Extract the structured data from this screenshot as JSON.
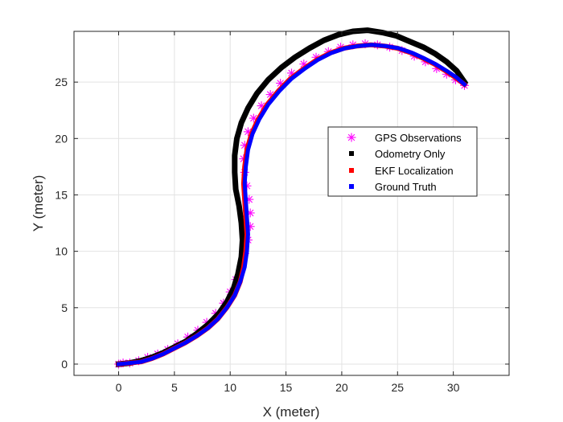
{
  "chart_data": {
    "type": "line",
    "title": "",
    "xlabel": "X (meter)",
    "ylabel": "Y (meter)",
    "xlim": [
      -4,
      35
    ],
    "ylim": [
      -1,
      29.5
    ],
    "xticks": [
      0,
      5,
      10,
      15,
      20,
      25,
      30
    ],
    "yticks": [
      0,
      5,
      10,
      15,
      20,
      25
    ],
    "grid": true,
    "legend_position": "right-center",
    "colors": {
      "gps": "#ff00ff",
      "odometry": "#000000",
      "ekf": "#ff0000",
      "ground_truth": "#0000ff",
      "grid": "#e3e3e3",
      "axes": "#262626"
    },
    "series": [
      {
        "name": "GPS Observations",
        "marker": "asterisk",
        "x": [
          0.0,
          0.4,
          1.0,
          1.8,
          2.6,
          3.5,
          4.4,
          5.3,
          6.2,
          7.1,
          7.9,
          8.7,
          9.4,
          10.0,
          10.5,
          11.0,
          11.3,
          11.6,
          11.8,
          11.8,
          11.7,
          11.5,
          11.3,
          11.2,
          11.3,
          11.6,
          12.1,
          12.8,
          13.6,
          14.5,
          15.5,
          16.6,
          17.7,
          18.8,
          19.9,
          21.0,
          22.1,
          23.2,
          24.3,
          25.4,
          26.5,
          27.5,
          28.5,
          29.4,
          30.2,
          31.0
        ],
        "y": [
          0.0,
          0.1,
          0.1,
          0.3,
          0.6,
          0.9,
          1.3,
          1.8,
          2.4,
          3.0,
          3.7,
          4.5,
          5.4,
          6.4,
          7.5,
          8.6,
          9.8,
          11.0,
          12.2,
          13.4,
          14.6,
          15.8,
          17.0,
          18.2,
          19.4,
          20.6,
          21.8,
          22.9,
          23.9,
          24.9,
          25.8,
          26.6,
          27.2,
          27.7,
          28.1,
          28.3,
          28.4,
          28.3,
          28.1,
          27.8,
          27.3,
          26.8,
          26.2,
          25.7,
          25.2,
          24.7
        ]
      },
      {
        "name": "Odometry Only",
        "marker": "square",
        "x": [
          0.0,
          1.0,
          2.0,
          3.0,
          4.0,
          5.0,
          6.0,
          7.0,
          8.0,
          9.0,
          9.7,
          10.3,
          10.7,
          11.0,
          11.1,
          11.0,
          10.8,
          10.5,
          10.4,
          10.4,
          10.6,
          11.0,
          11.6,
          12.4,
          13.4,
          14.6,
          15.8,
          17.1,
          18.4,
          19.7,
          21.0,
          22.3,
          23.6,
          24.9,
          26.1,
          27.3,
          28.4,
          29.4,
          30.3,
          31.0
        ],
        "y": [
          0.0,
          0.1,
          0.3,
          0.6,
          1.0,
          1.5,
          2.0,
          2.7,
          3.5,
          4.5,
          5.5,
          6.7,
          8.0,
          9.5,
          11.0,
          12.5,
          14.0,
          15.5,
          17.0,
          18.5,
          20.0,
          21.4,
          22.7,
          24.0,
          25.2,
          26.3,
          27.2,
          28.0,
          28.7,
          29.2,
          29.5,
          29.6,
          29.4,
          29.1,
          28.6,
          28.1,
          27.5,
          26.8,
          26.0,
          25.0
        ]
      },
      {
        "name": "EKF Localization",
        "marker": "square",
        "x": [
          0.0,
          1.0,
          2.0,
          3.0,
          4.0,
          5.0,
          6.0,
          7.0,
          8.0,
          8.9,
          9.7,
          10.4,
          10.9,
          11.2,
          11.4,
          11.5,
          11.4,
          11.3,
          11.2,
          11.3,
          11.5,
          11.9,
          12.5,
          13.3,
          14.3,
          15.4,
          16.6,
          17.8,
          19.0,
          20.2,
          21.4,
          22.6,
          23.8,
          25.0,
          26.2,
          27.3,
          28.3,
          29.3,
          30.2,
          31.0
        ],
        "y": [
          0.0,
          0.1,
          0.2,
          0.5,
          0.9,
          1.4,
          1.9,
          2.5,
          3.2,
          4.0,
          5.0,
          6.1,
          7.3,
          8.6,
          10.0,
          11.5,
          13.0,
          14.5,
          16.0,
          17.5,
          19.0,
          20.4,
          21.7,
          23.0,
          24.2,
          25.3,
          26.2,
          27.0,
          27.6,
          28.0,
          28.2,
          28.3,
          28.2,
          28.0,
          27.6,
          27.1,
          26.6,
          26.0,
          25.4,
          24.8
        ]
      },
      {
        "name": "Ground Truth",
        "marker": "square",
        "x": [
          0.0,
          1.0,
          2.0,
          3.0,
          4.0,
          5.0,
          6.0,
          7.0,
          8.0,
          8.9,
          9.7,
          10.4,
          10.9,
          11.3,
          11.5,
          11.6,
          11.5,
          11.4,
          11.3,
          11.4,
          11.6,
          12.0,
          12.6,
          13.4,
          14.4,
          15.5,
          16.7,
          17.9,
          19.1,
          20.3,
          21.5,
          22.7,
          23.9,
          25.1,
          26.3,
          27.4,
          28.4,
          29.4,
          30.3,
          31.0
        ],
        "y": [
          0.0,
          0.1,
          0.2,
          0.5,
          0.9,
          1.4,
          1.9,
          2.5,
          3.2,
          4.0,
          5.0,
          6.1,
          7.3,
          8.6,
          10.0,
          11.5,
          13.0,
          14.5,
          16.0,
          17.5,
          19.0,
          20.4,
          21.7,
          23.0,
          24.2,
          25.3,
          26.2,
          27.0,
          27.6,
          28.0,
          28.2,
          28.3,
          28.2,
          28.0,
          27.6,
          27.1,
          26.6,
          26.0,
          25.4,
          24.8
        ]
      }
    ]
  }
}
